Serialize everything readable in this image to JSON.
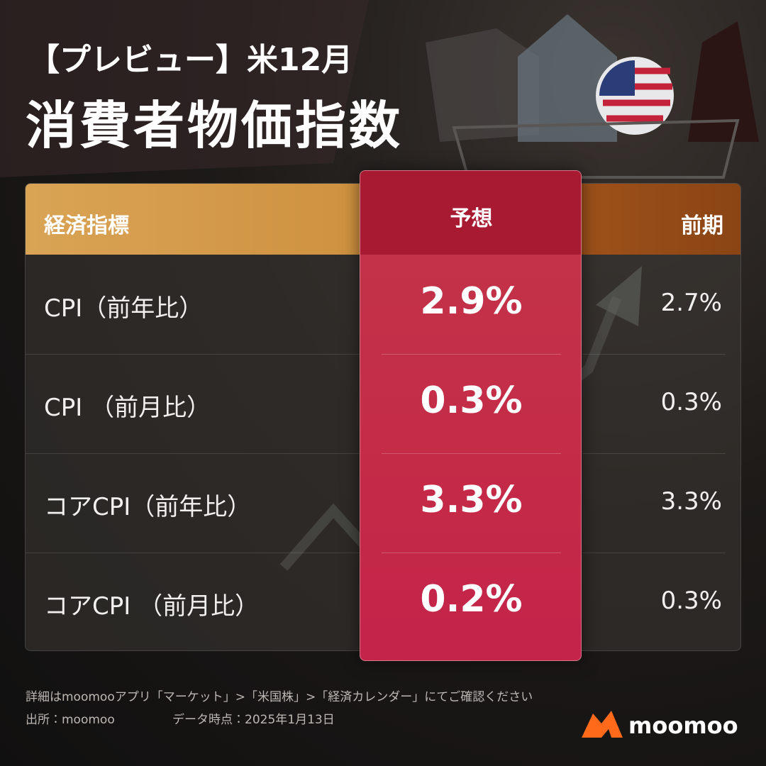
{
  "header": {
    "tag": "【プレビュー】米12月",
    "title": "消費者物価指数"
  },
  "table": {
    "columns": [
      "経済指標",
      "予想",
      "前期"
    ],
    "rows": [
      [
        "CPI（前年比）",
        "2.9%",
        "2.7%"
      ],
      [
        "CPI （前月比）",
        "0.3%",
        "0.3%"
      ],
      [
        "コアCPI（前年比）",
        "3.3%",
        "3.3%"
      ],
      [
        "コアCPI （前月比）",
        "0.2%",
        "0.3%"
      ]
    ]
  },
  "footer": {
    "note": "詳細はmoomooアプリ「マーケット」>「米国株」>「経済カレンダー」にてご確認ください",
    "source": "出所：moomoo",
    "date": "データ時点：2025年1月13日",
    "logo": "moomoo"
  }
}
